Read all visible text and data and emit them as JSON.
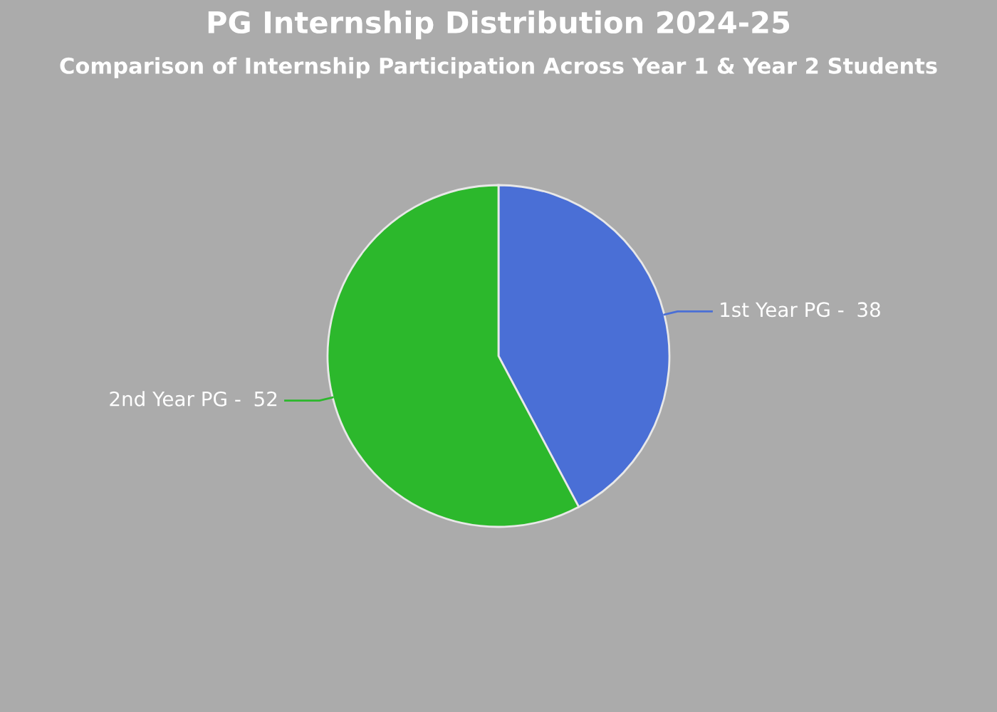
{
  "chart_data": {
    "type": "pie",
    "title": "PG Internship Distribution 2024-25",
    "subtitle": "Comparison of Internship Participation Across Year 1 & Year 2 Students",
    "categories": [
      "1st Year PG -",
      "2nd Year PG -"
    ],
    "values": [
      38,
      52
    ],
    "colors": [
      "#4a6fd6",
      "#2cb82c"
    ],
    "data_labels": true
  }
}
